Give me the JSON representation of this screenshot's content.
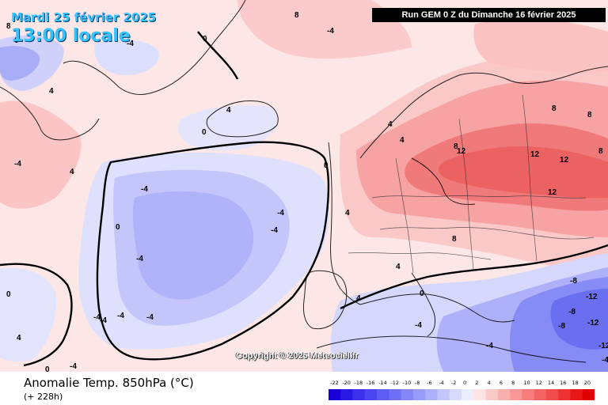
{
  "header": {
    "date": "Mardi 25 février 2025",
    "local_time": "13:00 locale",
    "run_info": "Run GEM 0 Z du Dimanche 16 février 2025"
  },
  "footer": {
    "variable": "Anomalie Temp. 850hPa (°C)",
    "forecast_hour": "(+ 228h)"
  },
  "copyright": "Copyright © 2025 Meteociel.fr",
  "legend": {
    "ticks": [
      "-22",
      "-20",
      "-18",
      "-16",
      "-14",
      "-12",
      "-10",
      "-8",
      "-6",
      "-4",
      "-2",
      "0",
      "2",
      "4",
      "6",
      "8",
      "10",
      "12",
      "14",
      "16",
      "18",
      "20"
    ],
    "colors": [
      "#1a00d8",
      "#2a18e6",
      "#3a30ee",
      "#4c46f2",
      "#5e5cf4",
      "#7070f6",
      "#8486f8",
      "#989bfa",
      "#adb0fc",
      "#c3c6fd",
      "#d9dbfe",
      "#eceefe",
      "#fde3e3",
      "#fcc9c9",
      "#fbb0b0",
      "#f99797",
      "#f77d7d",
      "#f46464",
      "#f14b4b",
      "#ee3232",
      "#e81818",
      "#e00000"
    ]
  },
  "map_labels": [
    {
      "text": "8",
      "c": "pos"
    },
    {
      "text": "-4",
      "c": "neg"
    },
    {
      "text": "4",
      "c": "pos"
    },
    {
      "text": "0",
      "c": "zero"
    },
    {
      "text": "-4",
      "c": "neg"
    },
    {
      "text": "4",
      "c": "pos"
    },
    {
      "text": "-4",
      "c": "neg"
    },
    {
      "text": "0",
      "c": "zero"
    },
    {
      "text": "4",
      "c": "pos"
    },
    {
      "text": "0",
      "c": "zero"
    },
    {
      "text": "-4",
      "c": "neg"
    },
    {
      "text": "-4",
      "c": "neg"
    },
    {
      "text": "-4",
      "c": "neg"
    },
    {
      "text": "-4",
      "c": "neg"
    },
    {
      "text": "0",
      "c": "zero"
    },
    {
      "text": "-4",
      "c": "neg"
    },
    {
      "text": "-4",
      "c": "neg"
    },
    {
      "text": "4",
      "c": "pos"
    },
    {
      "text": "8",
      "c": "pos"
    },
    {
      "text": "4",
      "c": "pos"
    },
    {
      "text": "12",
      "c": "pos"
    },
    {
      "text": "12",
      "c": "pos"
    },
    {
      "text": "12",
      "c": "pos"
    },
    {
      "text": "12",
      "c": "pos"
    },
    {
      "text": "8",
      "c": "pos"
    },
    {
      "text": "8",
      "c": "pos"
    },
    {
      "text": "8",
      "c": "pos"
    },
    {
      "text": "8",
      "c": "pos"
    },
    {
      "text": "4",
      "c": "pos"
    },
    {
      "text": "4",
      "c": "pos"
    },
    {
      "text": "0",
      "c": "zero"
    },
    {
      "text": "-4",
      "c": "neg"
    },
    {
      "text": "-4",
      "c": "neg"
    },
    {
      "text": "-8",
      "c": "neg"
    },
    {
      "text": "-12",
      "c": "neg"
    },
    {
      "text": "-8",
      "c": "neg"
    },
    {
      "text": "-12",
      "c": "neg"
    },
    {
      "text": "-12",
      "c": "neg"
    },
    {
      "text": "-8",
      "c": "neg"
    },
    {
      "text": "-4",
      "c": "neg"
    },
    {
      "text": "-4",
      "c": "neg"
    },
    {
      "text": "0",
      "c": "zero"
    },
    {
      "text": "4",
      "c": "pos"
    },
    {
      "text": "0",
      "c": "zero"
    },
    {
      "text": "-4",
      "c": "neg"
    },
    {
      "text": "-4",
      "c": "neg"
    },
    {
      "text": "4",
      "c": "pos"
    },
    {
      "text": "8",
      "c": "pos"
    }
  ]
}
